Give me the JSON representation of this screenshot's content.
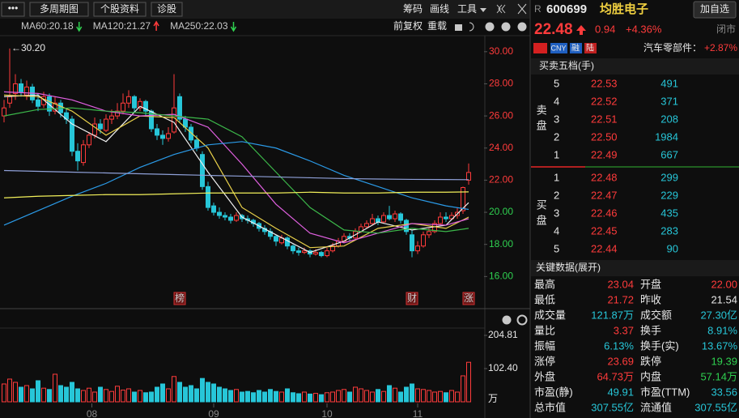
{
  "toolbar": {
    "menu": "•••",
    "buttons": [
      "多周期图",
      "个股资料",
      "诊股"
    ],
    "tools": [
      "筹码",
      "画线",
      "工具"
    ],
    "options": [
      "前复权",
      "重载"
    ]
  },
  "chart_data": [
    {
      "type": "candlestick",
      "xlim": [
        -0.714,
        84.714
      ],
      "ylim": [
        14,
        31
      ],
      "yticks": [
        {
          "value": 30,
          "label": "30.00"
        },
        {
          "value": 28,
          "label": "28.00"
        },
        {
          "value": 26,
          "label": "26.00"
        },
        {
          "value": 24,
          "label": "24.00"
        },
        {
          "value": 22,
          "label": "22.00"
        },
        {
          "value": 20,
          "label": "20.00"
        },
        {
          "value": 18,
          "label": "18.00"
        },
        {
          "value": 16,
          "label": "16.00"
        }
      ],
      "xticks": [
        {
          "value": 15.5,
          "label": "08"
        },
        {
          "value": 37,
          "label": "09"
        },
        {
          "value": 57,
          "label": "10"
        },
        {
          "value": 73,
          "label": "11"
        }
      ],
      "up_color": "#ff3b3b",
      "down_color": "#27c6d8",
      "open": [
        26.0,
        26.8,
        27.4,
        28.0,
        27.3,
        27.8,
        27.0,
        26.7,
        27.2,
        26.3,
        26.8,
        26.2,
        25.8,
        23.8,
        23.1,
        24.2,
        24.8,
        25.5,
        25.1,
        25.8,
        26.0,
        26.3,
        26.8,
        27.2,
        26.5,
        26.9,
        26.3,
        25.2,
        24.8,
        24.6,
        25.0,
        27.2,
        25.8,
        25.3,
        24.5,
        23.6,
        21.6,
        20.4,
        20.0,
        19.8,
        19.7,
        19.5,
        19.8,
        19.6,
        19.5,
        19.3,
        19.0,
        18.8,
        18.5,
        18.1,
        18.4,
        17.9,
        17.6,
        17.5,
        17.6,
        17.4,
        17.5,
        17.3,
        17.6,
        17.9,
        18.2,
        18.5,
        18.4,
        18.8,
        19.1,
        19.3,
        19.6,
        19.4,
        19.8,
        19.6,
        19.9,
        19.5,
        18.6,
        17.6,
        17.9,
        18.6,
        18.8,
        19.3,
        19.7,
        19.6,
        19.8,
        20.1,
        22.0
      ],
      "high": [
        27.0,
        30.2,
        28.6,
        28.3,
        28.2,
        28.0,
        27.4,
        27.5,
        27.4,
        27.2,
        27.0,
        26.5,
        26.0,
        24.3,
        24.5,
        25.0,
        25.9,
        25.8,
        26.1,
        26.4,
        26.8,
        27.4,
        27.6,
        27.3,
        27.1,
        27.0,
        26.4,
        25.5,
        25.1,
        25.3,
        28.6,
        27.4,
        26.0,
        25.5,
        24.8,
        23.8,
        21.9,
        20.6,
        20.3,
        20.0,
        19.9,
        20.0,
        19.9,
        19.8,
        19.6,
        19.4,
        19.2,
        19.0,
        18.6,
        18.6,
        18.5,
        18.0,
        17.8,
        17.8,
        17.7,
        17.7,
        17.6,
        17.8,
        18.1,
        18.4,
        18.7,
        18.7,
        19.0,
        19.3,
        19.5,
        19.9,
        19.8,
        20.0,
        20.4,
        20.1,
        20.0,
        19.6,
        18.9,
        18.2,
        18.8,
        19.0,
        19.5,
        20.0,
        20.0,
        20.0,
        20.3,
        21.6,
        23.04
      ],
      "low": [
        25.6,
        26.5,
        27.0,
        27.2,
        27.0,
        26.8,
        26.3,
        26.5,
        26.0,
        26.1,
        25.9,
        25.5,
        23.5,
        22.6,
        22.9,
        24.0,
        24.6,
        24.9,
        25.0,
        25.5,
        25.8,
        26.1,
        26.5,
        26.2,
        26.3,
        26.0,
        25.0,
        24.5,
        24.2,
        24.4,
        24.9,
        25.6,
        25.0,
        24.3,
        23.8,
        21.4,
        20.1,
        19.8,
        19.6,
        19.5,
        19.3,
        19.4,
        19.4,
        19.3,
        19.1,
        18.8,
        18.6,
        18.3,
        17.9,
        18.0,
        17.7,
        17.4,
        17.3,
        17.4,
        17.2,
        17.3,
        17.2,
        17.2,
        17.5,
        17.8,
        18.1,
        18.2,
        18.3,
        18.7,
        19.0,
        19.2,
        19.2,
        19.3,
        19.5,
        19.4,
        19.3,
        18.6,
        17.2,
        17.4,
        17.8,
        18.4,
        18.7,
        19.2,
        19.4,
        19.5,
        19.6,
        19.9,
        21.72
      ],
      "close": [
        26.5,
        27.2,
        28.0,
        27.5,
        27.8,
        27.0,
        26.6,
        27.2,
        26.3,
        26.8,
        26.2,
        25.8,
        23.8,
        23.2,
        24.2,
        24.8,
        25.5,
        25.2,
        25.8,
        26.0,
        26.3,
        26.8,
        27.2,
        26.5,
        26.9,
        26.3,
        25.2,
        24.8,
        24.6,
        24.9,
        26.5,
        25.8,
        25.3,
        24.5,
        24.0,
        21.6,
        20.3,
        20.0,
        19.8,
        19.7,
        19.5,
        19.8,
        19.6,
        19.5,
        19.3,
        19.0,
        18.8,
        18.5,
        18.2,
        18.4,
        17.9,
        17.6,
        17.5,
        17.6,
        17.4,
        17.5,
        17.3,
        17.6,
        17.9,
        18.2,
        18.5,
        18.4,
        18.8,
        19.1,
        19.3,
        19.6,
        19.4,
        19.8,
        19.6,
        19.9,
        19.5,
        18.8,
        17.6,
        17.9,
        18.6,
        18.8,
        19.3,
        19.7,
        19.6,
        19.8,
        20.0,
        21.54,
        22.48
      ],
      "high_marker": {
        "index": 1,
        "value": 30.2,
        "label": "←30.20"
      },
      "events": [
        {
          "index": 31,
          "label": "榜"
        },
        {
          "index": 72,
          "label": "财"
        },
        {
          "index": 82,
          "label": "涨"
        }
      ],
      "ma_x": [
        0,
        6,
        12,
        18,
        24,
        30,
        36,
        42,
        48,
        54,
        60,
        66,
        72,
        78,
        82
      ],
      "ma": [
        {
          "color": "#f0f0f0",
          "values": [
            27.2,
            27.3,
            25.5,
            24.4,
            26.6,
            25.6,
            22.5,
            19.7,
            18.6,
            17.5,
            18.2,
            19.4,
            18.9,
            19.2,
            20.6
          ]
        },
        {
          "color": "#e8d04a",
          "values": [
            27.3,
            27.2,
            26.3,
            24.8,
            26.0,
            25.9,
            24.0,
            20.3,
            19.0,
            17.8,
            17.9,
            19.0,
            19.3,
            19.0,
            19.7
          ]
        },
        {
          "color": "#e060e0",
          "values": [
            27.5,
            27.4,
            27.0,
            26.3,
            26.0,
            26.1,
            25.3,
            23.0,
            20.5,
            18.7,
            18.1,
            18.7,
            19.3,
            19.2,
            19.6
          ]
        },
        {
          "color": "#3cb84a",
          "values": [
            26.0,
            26.4,
            26.5,
            26.3,
            26.2,
            26.0,
            25.8,
            24.7,
            22.5,
            20.3,
            18.9,
            18.7,
            19.0,
            18.8,
            19.0
          ]
        },
        {
          "name": "MA60:20.18",
          "trend": "down",
          "color": "#2b9be8",
          "values": [
            19.2,
            20.1,
            21.0,
            21.8,
            22.8,
            23.6,
            24.2,
            24.4,
            24.0,
            23.2,
            22.3,
            21.6,
            20.9,
            20.4,
            20.18
          ]
        },
        {
          "name": "MA120:21.27",
          "trend": "up",
          "color": "#f2f05a",
          "values": [
            20.9,
            21.0,
            21.05,
            21.1,
            21.1,
            21.15,
            21.2,
            21.2,
            21.2,
            21.25,
            21.2,
            21.2,
            21.25,
            21.25,
            21.27
          ]
        },
        {
          "name": "MA250:22.03",
          "trend": "down",
          "color": "#8fa0d8",
          "values": [
            22.6,
            22.55,
            22.5,
            22.45,
            22.4,
            22.35,
            22.3,
            22.25,
            22.2,
            22.15,
            22.1,
            22.07,
            22.05,
            22.04,
            22.03
          ]
        }
      ]
    },
    {
      "type": "bar",
      "unit": "万",
      "ylim": [
        0,
        204.81
      ],
      "yticks": [
        204.81,
        {
          "value": 102.4,
          "label": "102.40"
        }
      ],
      "values": [
        55,
        70,
        60,
        45,
        50,
        40,
        65,
        42,
        38,
        85,
        50,
        45,
        60,
        40,
        35,
        42,
        30,
        45,
        38,
        32,
        48,
        36,
        40,
        30,
        35,
        28,
        30,
        45,
        55,
        40,
        78,
        60,
        45,
        50,
        40,
        72,
        60,
        55,
        45,
        40,
        35,
        38,
        30,
        32,
        28,
        35,
        30,
        38,
        32,
        30,
        40,
        28,
        25,
        30,
        24,
        26,
        22,
        28,
        30,
        35,
        38,
        30,
        45,
        40,
        35,
        30,
        38,
        32,
        50,
        42,
        30,
        45,
        55,
        40,
        38,
        35,
        30,
        32,
        28,
        35,
        30,
        80,
        121.87
      ]
    }
  ],
  "quote": {
    "flag": "R",
    "code": "600699",
    "name": "均胜电子",
    "watch": "加自选",
    "price": "22.48",
    "change": "0.94",
    "change_pct": "+4.36%",
    "status": "闭市",
    "tags": [
      "CNY",
      "融",
      "陆"
    ],
    "sector": "汽车零部件：",
    "sector_change": "+2.87%",
    "book_title": "买卖五档(手)",
    "sell_label": "卖盘",
    "buy_label": "买盘",
    "asks": [
      {
        "level": 5,
        "price": "22.53",
        "volume": 491
      },
      {
        "level": 4,
        "price": "22.52",
        "volume": 371
      },
      {
        "level": 3,
        "price": "22.51",
        "volume": 208
      },
      {
        "level": 2,
        "price": "22.50",
        "volume": 1984
      },
      {
        "level": 1,
        "price": "22.49",
        "volume": 667
      }
    ],
    "bids": [
      {
        "level": 1,
        "price": "22.48",
        "volume": 299
      },
      {
        "level": 2,
        "price": "22.47",
        "volume": 229
      },
      {
        "level": 3,
        "price": "22.46",
        "volume": 435
      },
      {
        "level": 4,
        "price": "22.45",
        "volume": 283
      },
      {
        "level": 5,
        "price": "22.44",
        "volume": 90
      }
    ],
    "key_title": "关键数据(展开)",
    "key_rows": [
      [
        "最高",
        "23.04",
        "开盘",
        "22.00"
      ],
      [
        "最低",
        "21.72",
        "昨收",
        "21.54"
      ],
      [
        "成交量",
        "121.87万",
        "成交额",
        "27.30亿"
      ],
      [
        "量比",
        "3.37",
        "换手",
        "8.91%"
      ],
      [
        "振幅",
        "6.13%",
        "换手(实)",
        "13.67%"
      ],
      [
        "涨停",
        "23.69",
        "跌停",
        "19.39"
      ],
      [
        "外盘",
        "64.73万",
        "内盘",
        "57.14万"
      ],
      [
        "市盈(静)",
        "49.91",
        "市盈(TTM)",
        "33.56"
      ],
      [
        "总市值",
        "307.55亿",
        "流通值",
        "307.55亿"
      ]
    ]
  }
}
